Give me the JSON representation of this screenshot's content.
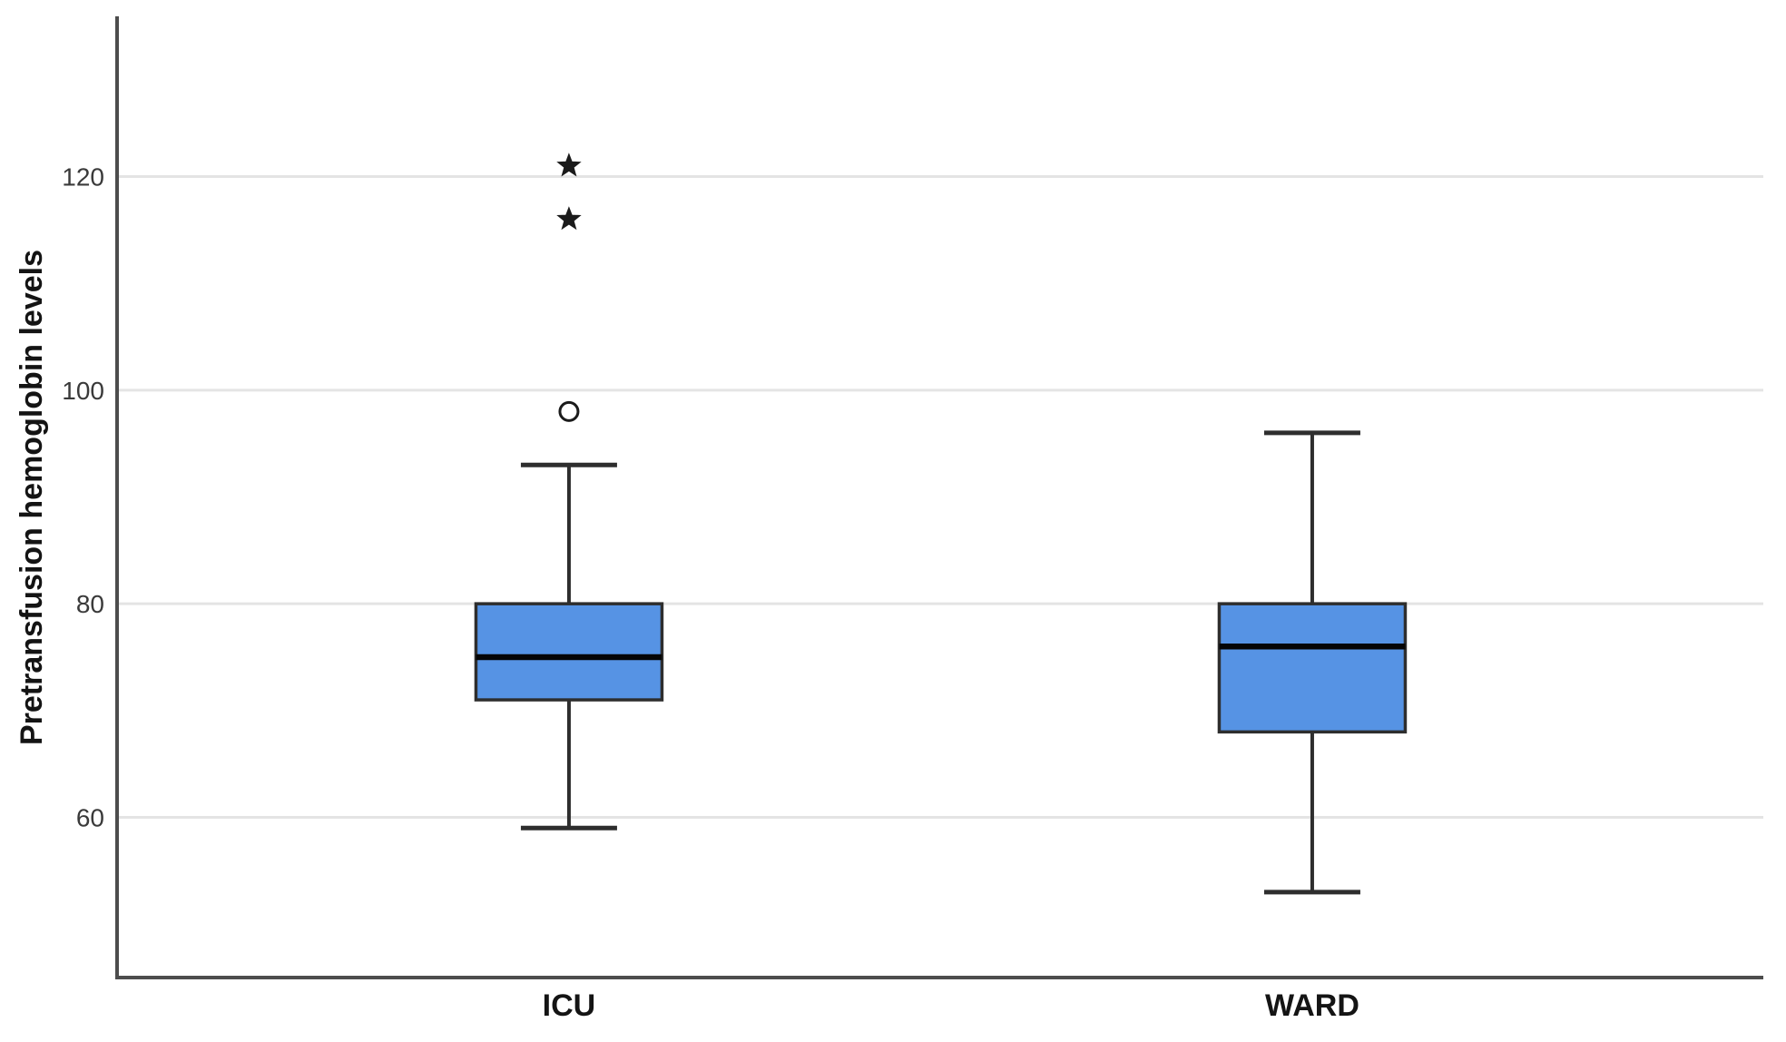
{
  "chart_data": {
    "type": "boxplot",
    "title": "",
    "xlabel": "",
    "ylabel": "Pretransfusion hemoglobin levels",
    "categories": [
      "ICU",
      "WARD"
    ],
    "yticks": [
      60,
      80,
      100,
      120
    ],
    "ylim": [
      45,
      135
    ],
    "grid": "horizontal-only",
    "legend": "none",
    "series": [
      {
        "category": "ICU",
        "whisker_low": 59,
        "q1": 71,
        "median": 75,
        "q3": 80,
        "whisker_high": 93,
        "outliers_mild": [
          98
        ],
        "outliers_extreme": [
          116,
          121
        ]
      },
      {
        "category": "WARD",
        "whisker_low": 53,
        "q1": 68,
        "median": 76,
        "q3": 80,
        "whisker_high": 96,
        "outliers_mild": [],
        "outliers_extreme": []
      }
    ],
    "markers": {
      "mild_outlier": "circle-icon",
      "extreme_outlier": "star-icon"
    },
    "colors": {
      "box_fill": "#5693E4",
      "box_border": "#2E2E2E",
      "median_line": "#050505",
      "whisker": "#2E2E2E",
      "gridline": "#E4E4E4",
      "axis_line": "#4D4D4D",
      "outlier": "#1B1B1B",
      "background": "#FFFFFF"
    }
  }
}
